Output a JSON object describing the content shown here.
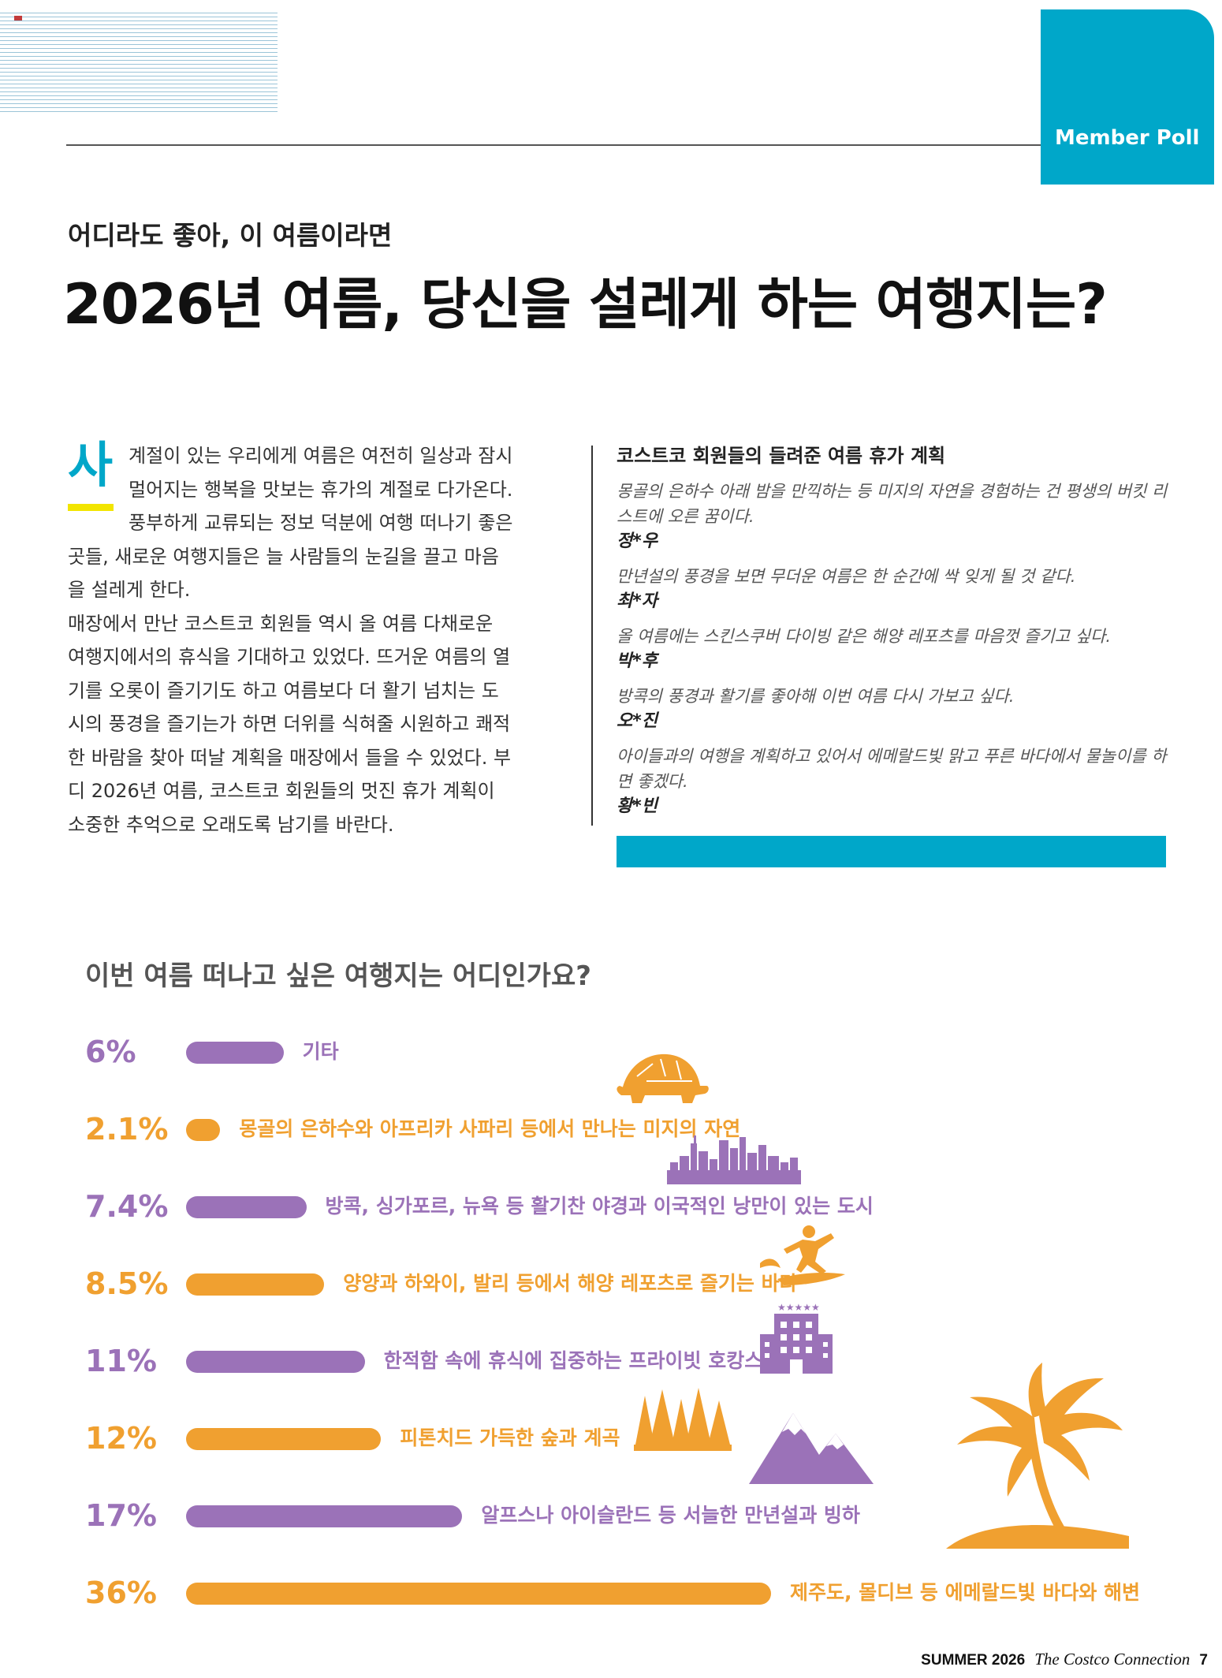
{
  "section_tab": "Member Poll",
  "kicker": "어디라도 좋아, 이 여름이라면",
  "headline": "2026년 여름, 당신을 설레게 하는 여행지는?",
  "body": {
    "dropcap": "사",
    "para1": "계절이 있는 우리에게 여름은 여전히 일상과 잠시 멀어지는 행복을 맛보는 휴가의 계절로 다가온다. 풍부하게 교류되는 정보 덕분에 여행 떠나기 좋은 곳들, 새로운 여행지들은 늘 사람들의 눈길을 끌고 마음을 설레게 한다.",
    "para2": "매장에서 만난 코스트코 회원들 역시 올 여름 다채로운 여행지에서의 휴식을 기대하고 있었다. 뜨거운 여름의 열기를 오롯이 즐기기도 하고 여름보다 더 활기 넘치는 도시의 풍경을 즐기는가 하면 더위를 식혀줄 시원하고 쾌적한 바람을 찾아 떠날 계획을 매장에서 들을 수 있었다. 부디 2026년 여름, 코스트코 회원들의 멋진 휴가 계획이 소중한 추억으로 오래도록 남기를 바란다."
  },
  "quotes": {
    "title": "코스트코 회원들의 들려준 여름 휴가 계획",
    "items": [
      {
        "text": "몽골의 은하수 아래 밤을 만끽하는 등 미지의 자연을 경험하는 건 평생의 버킷 리스트에 오른 꿈이다.",
        "name": "정*우"
      },
      {
        "text": "만년설의 풍경을 보면 무더운 여름은 한 순간에 싹 잊게 될 것 같다.",
        "name": "최*자"
      },
      {
        "text": "올 여름에는 스킨스쿠버 다이빙 같은 해양 레포츠를 마음껏 즐기고 싶다.",
        "name": "박*후"
      },
      {
        "text": "방콕의 풍경과 활기를 좋아해 이번 여름 다시 가보고 싶다.",
        "name": "오*진"
      },
      {
        "text": "아이들과의 여행을 계획하고 있어서 에메랄드빛 맑고 푸른 바다에서 물놀이를 하면 좋겠다.",
        "name": "황*빈"
      }
    ]
  },
  "chart_data": {
    "type": "bar",
    "title": "이번 여름 떠나고 싶은 여행지는 어디인가요?",
    "unit": "%",
    "categories": [
      "기타",
      "몽골의 은하수와 아프리카 사파리 등에서 만나는 미지의 자연",
      "방콕, 싱가포르, 뉴욕 등 활기찬 야경과 이국적인 낭만이 있는 도시",
      "양양과 하와이, 발리 등에서 해양 레포츠로 즐기는 바다",
      "한적함 속에 휴식에 집중하는 프라이빗 호캉스",
      "피톤치드 가득한 숲과 계곡",
      "알프스나 아이슬란드 등 서늘한 만년설과 빙하",
      "제주도, 몰디브 등 에메랄드빛 바다와 해변"
    ],
    "values": [
      6,
      2.1,
      7.4,
      8.5,
      11,
      12,
      17,
      36
    ],
    "value_labels": [
      "6%",
      "2.1%",
      "7.4%",
      "8.5%",
      "11%",
      "12%",
      "17%",
      "36%"
    ],
    "bar_colors": [
      "#9b72b8",
      "#f0a030",
      "#9b72b8",
      "#f0a030",
      "#9b72b8",
      "#f0a030",
      "#9b72b8",
      "#f0a030"
    ],
    "icons": [
      "turtle-icon",
      "city-skyline-icon",
      "surfer-icon",
      "hotel-icon",
      "forest-icon",
      "mountain-icon",
      "palm-island-icon"
    ]
  },
  "footer": {
    "season": "SUMMER 2026",
    "magazine": "The Costco Connection",
    "page": "7"
  },
  "colors": {
    "teal": "#00a7c9",
    "purple": "#9b72b8",
    "orange": "#f0a030",
    "yellow": "#f2e500"
  }
}
